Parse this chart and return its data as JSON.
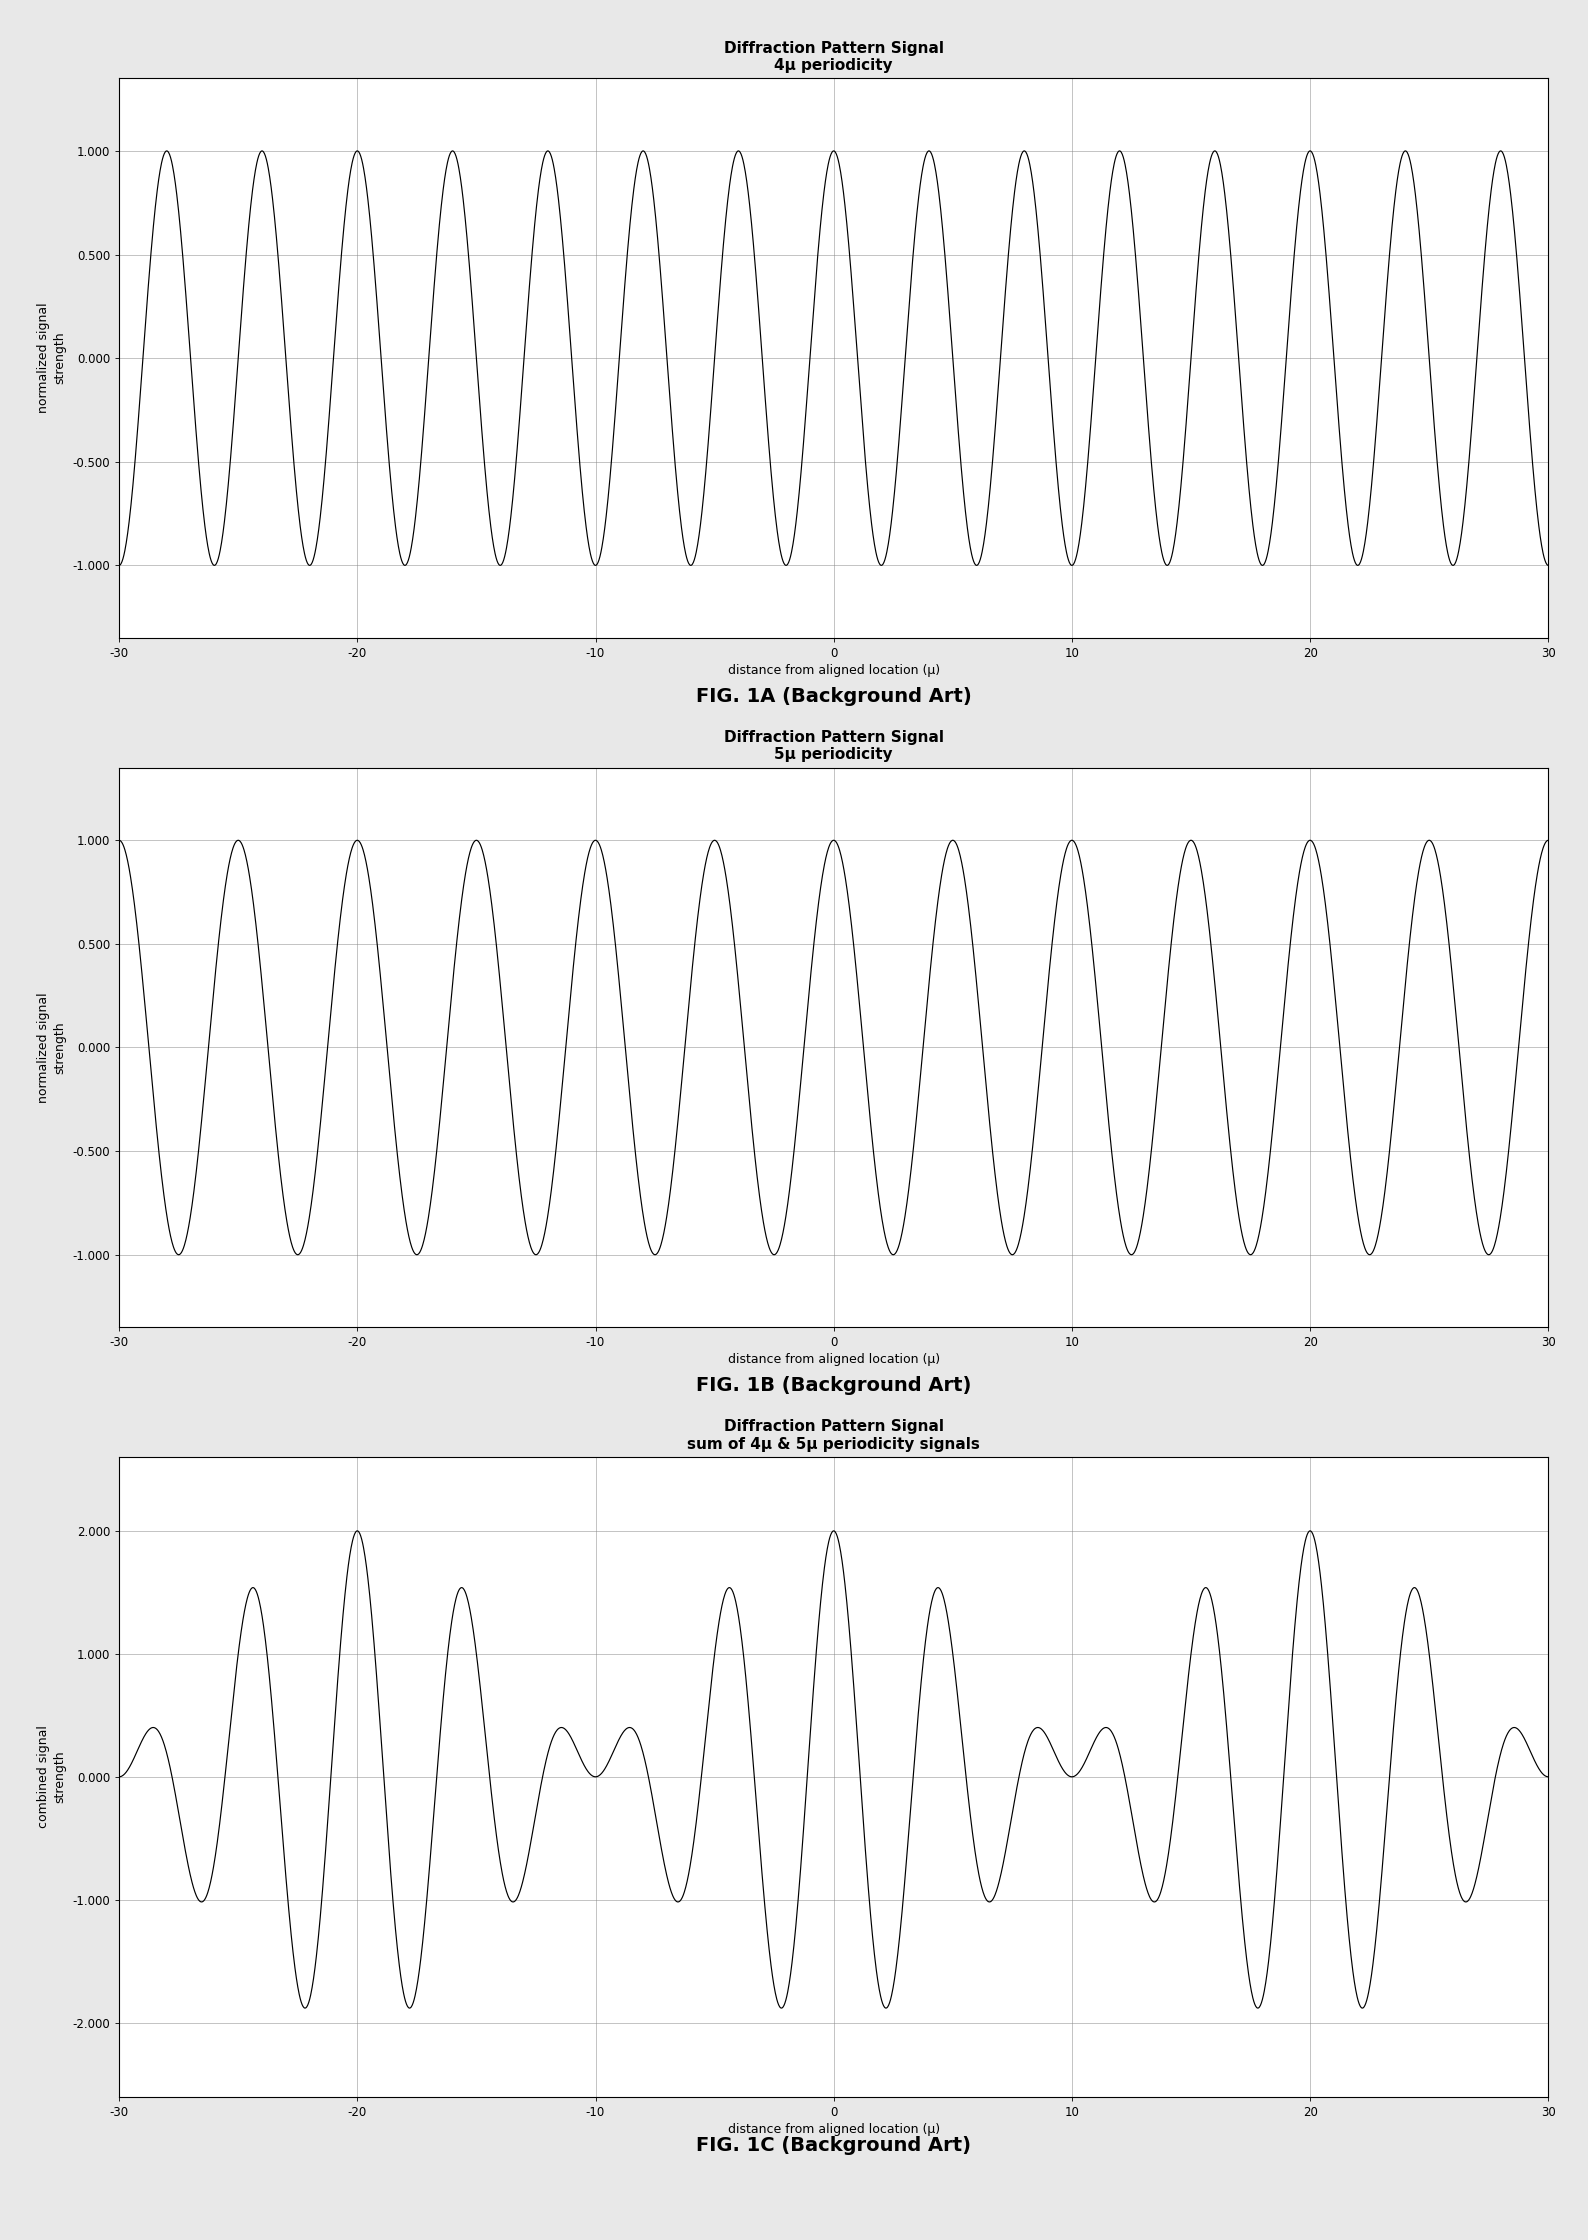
{
  "fig1a": {
    "title_line1": "Diffraction Pattern Signal",
    "title_line2": "4μ periodicity",
    "ylabel": "normalized signal\nstrength",
    "xlabel": "distance from aligned location (μ)",
    "xlim": [
      -30,
      30
    ],
    "ylim": [
      -1.35,
      1.35
    ],
    "yticks": [
      -1.0,
      -0.5,
      0.0,
      0.5,
      1.0
    ],
    "xticks": [
      -30,
      -20,
      -10,
      0,
      10,
      20,
      30
    ],
    "periodicity": 4,
    "fig_label": "FIG. 1A (Background Art)"
  },
  "fig1b": {
    "title_line1": "Diffraction Pattern Signal",
    "title_line2": "5μ periodicity",
    "ylabel": "normalized signal\nstrength",
    "xlabel": "distance from aligned location (μ)",
    "xlim": [
      -30,
      30
    ],
    "ylim": [
      -1.35,
      1.35
    ],
    "yticks": [
      -1.0,
      -0.5,
      0.0,
      0.5,
      1.0
    ],
    "xticks": [
      -30,
      -20,
      -10,
      0,
      10,
      20,
      30
    ],
    "periodicity": 5,
    "fig_label": "FIG. 1B (Background Art)"
  },
  "fig1c": {
    "title_line1": "Diffraction Pattern Signal",
    "title_line2": "sum of 4μ & 5μ periodicity signals",
    "ylabel": "combined signal\nstrength",
    "xlabel": "distance from aligned location (μ)",
    "xlim": [
      -30,
      30
    ],
    "ylim": [
      -2.6,
      2.6
    ],
    "yticks": [
      -2.0,
      -1.0,
      0.0,
      1.0,
      2.0
    ],
    "xticks": [
      -30,
      -20,
      -10,
      0,
      10,
      20,
      30
    ],
    "fig_label": "FIG. 1C (Background Art)"
  },
  "background_color": "#e8e8e8",
  "plot_bg_color": "#ffffff",
  "line_color": "#000000",
  "grid_color": "#888888",
  "title_fontsize": 11,
  "label_fontsize": 9,
  "tick_fontsize": 8.5,
  "fig_label_fontsize": 14
}
